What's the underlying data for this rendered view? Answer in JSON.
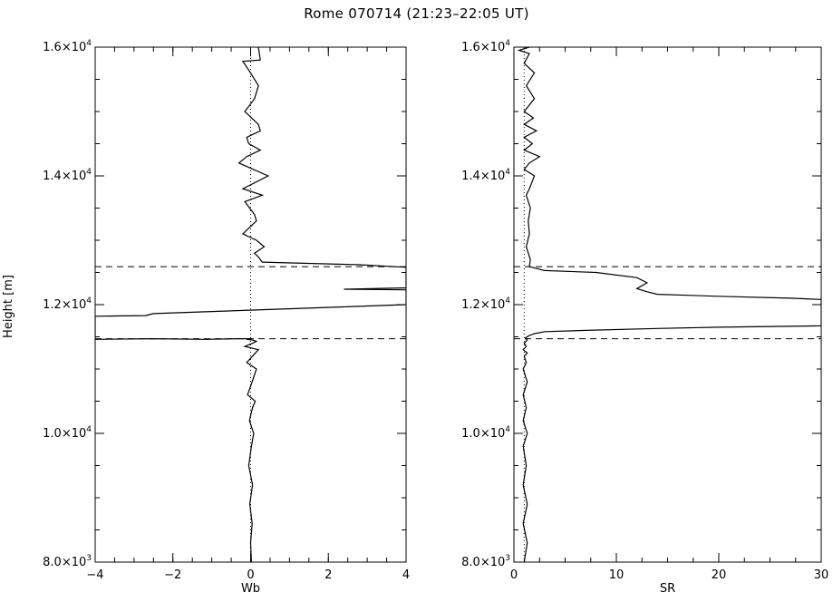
{
  "figure": {
    "title": "Rome 070714 (21:23–22:05 UT)",
    "ylabel": "Height [m]"
  },
  "chart_data": [
    {
      "type": "line",
      "xlabel": "Wb",
      "ylabel": "Height [m]",
      "xlim": [
        -4,
        4
      ],
      "ylim": [
        8000,
        16000
      ],
      "xticks": [
        -4,
        -2,
        0,
        2,
        4
      ],
      "xtick_labels": [
        "−4",
        "−2",
        "0",
        "2",
        "4"
      ],
      "yticks": [
        8000,
        10000,
        12000,
        14000,
        16000
      ],
      "ytick_labels": [
        {
          "mant": "8.0×10",
          "exp": "3"
        },
        {
          "mant": "1.0×10",
          "exp": "4"
        },
        {
          "mant": "1.2×10",
          "exp": "4"
        },
        {
          "mant": "1.4×10",
          "exp": "4"
        },
        {
          "mant": "1.6×10",
          "exp": "4"
        }
      ],
      "reference_x": 0,
      "hlines": [
        11470,
        12590
      ],
      "series": [
        {
          "x": [
            0.02,
            0.0,
            0.04,
            -0.02,
            0.05,
            -0.05,
            0.02,
            0.08,
            -0.03,
            0.05,
            0.12,
            -0.08,
            0.04,
            0.15,
            -0.1,
            0.05,
            0.2,
            -0.15,
            0.05,
            0.15,
            0.05,
            -0.1,
            0.0,
            -0.3,
            -1.2,
            -2.5,
            -4.0,
            -4.0,
            -2.7,
            -2.5,
            4.0,
            4.0,
            2.4,
            4.0,
            4.0,
            2.8,
            0.3,
            0.2,
            0.1,
            0.35,
            0.15,
            -0.2,
            0.15,
            0.1,
            -0.15,
            0.3,
            -0.2,
            0.45,
            -0.3,
            -0.1,
            0.25,
            -0.05,
            -0.1,
            0.25,
            0.2,
            -0.15,
            0.1,
            0.2,
            0.0,
            -0.2,
            0.25,
            0.2
          ],
          "y": [
            8000,
            8300,
            8600,
            8900,
            9200,
            9500,
            9800,
            10000,
            10200,
            10400,
            10500,
            10600,
            10800,
            11000,
            11100,
            11200,
            11300,
            11350,
            11400,
            11430,
            11450,
            11460,
            11470,
            11470,
            11460,
            11470,
            11460,
            11820,
            11830,
            11860,
            12000,
            12230,
            12240,
            12260,
            12580,
            12620,
            12660,
            12740,
            12800,
            12900,
            13000,
            13100,
            13300,
            13400,
            13600,
            13700,
            13800,
            14000,
            14200,
            14300,
            14400,
            14500,
            14600,
            14700,
            14800,
            15000,
            15200,
            15400,
            15600,
            15780,
            15800,
            16000
          ]
        }
      ]
    },
    {
      "type": "line",
      "xlabel": "SR",
      "ylabel": "",
      "xlim": [
        0,
        30
      ],
      "ylim": [
        8000,
        16000
      ],
      "xticks": [
        0,
        10,
        20,
        30
      ],
      "xtick_labels": [
        "0",
        "10",
        "20",
        "30"
      ],
      "yticks": [
        8000,
        10000,
        12000,
        14000,
        16000
      ],
      "ytick_labels": [
        {
          "mant": "8.0×10",
          "exp": "3"
        },
        {
          "mant": "1.0×10",
          "exp": "4"
        },
        {
          "mant": "1.2×10",
          "exp": "4"
        },
        {
          "mant": "1.4×10",
          "exp": "4"
        },
        {
          "mant": "1.6×10",
          "exp": "4"
        }
      ],
      "reference_x": 1,
      "hlines": [
        11470,
        12590
      ],
      "series": [
        {
          "x": [
            1.0,
            1.3,
            0.9,
            1.3,
            0.9,
            1.2,
            0.9,
            1.3,
            0.9,
            1.2,
            0.9,
            1.3,
            0.9,
            1.2,
            1.0,
            1.3,
            0.9,
            1.2,
            1.0,
            1.3,
            1.1,
            1.5,
            2.0,
            3.0,
            7.0,
            14.0,
            20.0,
            30.0,
            30.0,
            27.0,
            20.0,
            14.0,
            13.0,
            12.0,
            13.0,
            12.0,
            8.0,
            3.0,
            1.5,
            1.6,
            1.2,
            1.5,
            1.4,
            1.6,
            1.2,
            1.5,
            2.0,
            1.0,
            1.5,
            2.5,
            1.0,
            1.8,
            1.0,
            2.2,
            1.0,
            1.9,
            1.0,
            2.0,
            1.2,
            2.0,
            1.0,
            1.5,
            0.5,
            1.5
          ],
          "y": [
            8000,
            8300,
            8600,
            8900,
            9200,
            9500,
            9800,
            10000,
            10200,
            10400,
            10600,
            10800,
            11000,
            11100,
            11200,
            11250,
            11300,
            11350,
            11400,
            11450,
            11480,
            11520,
            11550,
            11580,
            11600,
            11630,
            11650,
            11670,
            12080,
            12100,
            12130,
            12160,
            12200,
            12250,
            12340,
            12420,
            12500,
            12530,
            12590,
            12700,
            12900,
            13100,
            13300,
            13500,
            13700,
            13800,
            14000,
            14100,
            14200,
            14300,
            14400,
            14500,
            14600,
            14700,
            14800,
            14900,
            15000,
            15200,
            15400,
            15600,
            15750,
            15900,
            15950,
            16000
          ]
        }
      ]
    }
  ]
}
